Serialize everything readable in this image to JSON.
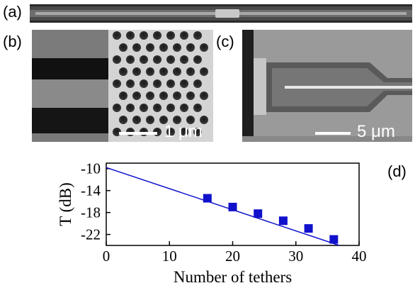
{
  "panels": {
    "a": {
      "label": "(a)"
    },
    "b": {
      "label": "(b)",
      "scale_text": "1 μm"
    },
    "c": {
      "label": "(c)",
      "scale_text": "5 μm"
    },
    "d": {
      "label": "(d)"
    }
  },
  "chart_data": {
    "type": "scatter",
    "xlabel": "Number of tethers",
    "ylabel": "T (dB)",
    "xlim": [
      0,
      40
    ],
    "ylim": [
      -24,
      -9
    ],
    "xticks": [
      0,
      10,
      20,
      30,
      40
    ],
    "yticks": [
      -10,
      -14,
      -18,
      -22
    ],
    "series": [
      {
        "marker": "square",
        "color": "#1111cc",
        "x": [
          16,
          20,
          24,
          28,
          32,
          36
        ],
        "y": [
          -15.4,
          -17.0,
          -18.2,
          -19.5,
          -20.9,
          -22.9
        ]
      }
    ],
    "fit_line": {
      "color": "#1111cc",
      "x": [
        0,
        40
      ],
      "y": [
        -9.8,
        -25.2
      ]
    }
  }
}
